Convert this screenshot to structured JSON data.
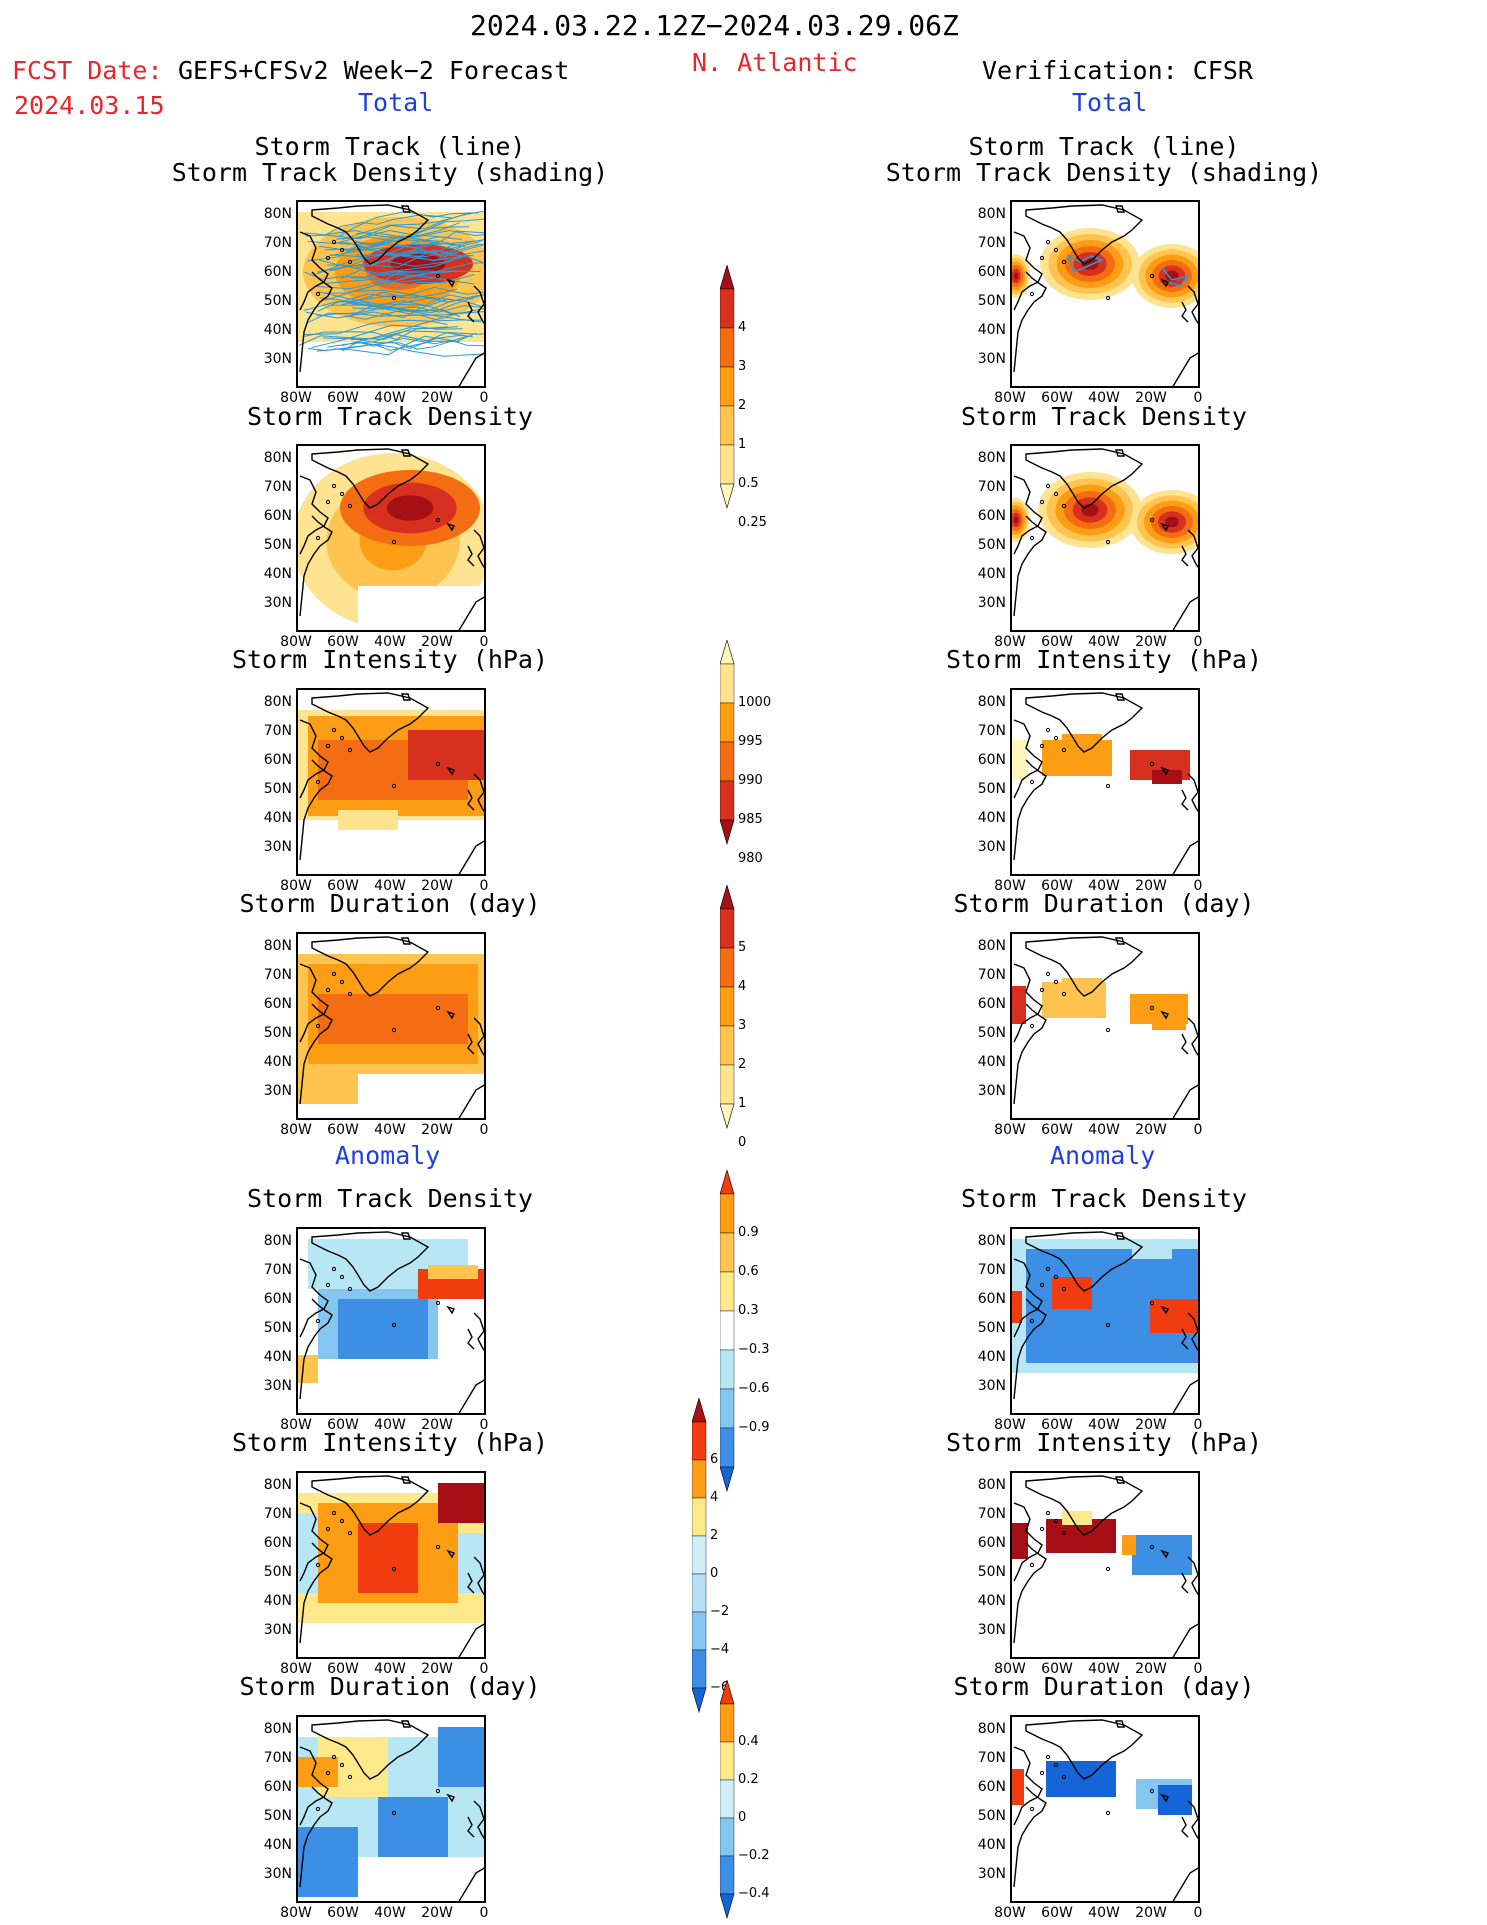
{
  "header": {
    "date_range": "2024.03.22.12Z−2024.03.29.06Z",
    "fcst_label": "FCST Date:",
    "fcst_model": "GEFS+CFSv2 Week−2 Forecast",
    "fcst_date": "2024.03.15",
    "region": "N. Atlantic",
    "verification": "Verification: CFSR",
    "left_section_total": "Total",
    "right_section_total": "Total",
    "left_section_anomaly": "Anomaly",
    "right_section_anomaly": "Anomaly"
  },
  "panel_titles": {
    "track_line": "Storm Track (line)",
    "track_shading": "Storm Track Density (shading)",
    "density": "Storm Track Density",
    "intensity": "Storm Intensity (hPa)",
    "duration": "Storm Duration (day)"
  },
  "axes": {
    "lat_labels": [
      "80N",
      "70N",
      "60N",
      "50N",
      "40N",
      "30N"
    ],
    "lon_labels": [
      "80W",
      "60W",
      "40W",
      "20W",
      "0"
    ]
  },
  "colorbars": {
    "density_total": {
      "labels": [
        "4",
        "3",
        "2",
        "1",
        "0.5",
        "0.25"
      ],
      "colors": [
        "#a50f15",
        "#d7301f",
        "#f46d13",
        "#fd9d13",
        "#fec44f",
        "#fee391",
        "#fff7bc"
      ]
    },
    "intensity_total": {
      "labels": [
        "1000",
        "995",
        "990",
        "985",
        "980"
      ],
      "colors": [
        "#fff7bc",
        "#fee391",
        "#fd9d13",
        "#f46d13",
        "#d7301f",
        "#a50f15"
      ]
    },
    "duration_total": {
      "labels": [
        "5",
        "4",
        "3",
        "2",
        "1",
        "0"
      ],
      "colors": [
        "#a50f15",
        "#d7301f",
        "#f46d13",
        "#fd9d13",
        "#fec44f",
        "#fee391",
        "#fff7bc"
      ]
    },
    "density_anom": {
      "labels": [
        "0.9",
        "0.6",
        "0.3",
        "−0.3",
        "−0.6",
        "−0.9"
      ],
      "colors": [
        "#f03c0f",
        "#fd9d13",
        "#fec44f",
        "#fde98a",
        "#ffffff",
        "#b7e6f5",
        "#84c6f0",
        "#3d8fe6",
        "#1565d8"
      ]
    },
    "intensity_anom": {
      "labels": [
        "6",
        "4",
        "2",
        "0",
        "−2",
        "−4",
        "−6"
      ],
      "colors": [
        "#a50f15",
        "#f03c0f",
        "#fd9d13",
        "#fde98a",
        "#cfeef8",
        "#b7dff5",
        "#84c6f0",
        "#3d8fe6",
        "#1565d8"
      ]
    },
    "duration_anom": {
      "labels": [
        "0.4",
        "0.2",
        "0",
        "−0.2",
        "−0.4"
      ],
      "colors": [
        "#f03c0f",
        "#fd9d13",
        "#fde98a",
        "#cfeef8",
        "#84c6f0",
        "#3d8fe6",
        "#1565d8"
      ]
    }
  }
}
